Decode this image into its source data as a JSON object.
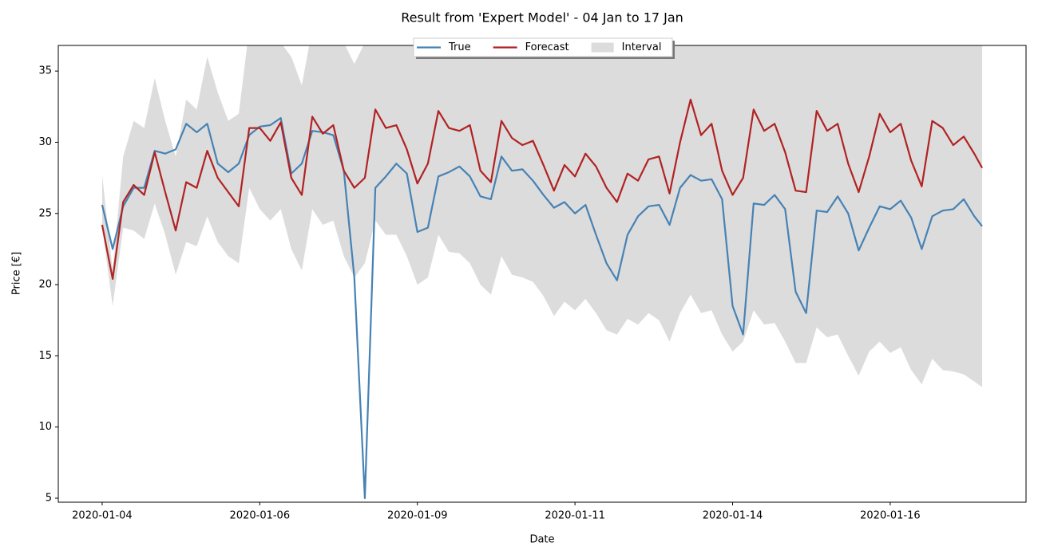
{
  "chart_data": {
    "type": "line",
    "title": "Result from 'Expert Model' - 04 Jan to 17 Jan",
    "x_label": "Date",
    "y_label": "Price [€]",
    "x": [
      0,
      4,
      8,
      12,
      16,
      20,
      24,
      28,
      32,
      36,
      40,
      44,
      48,
      52,
      56,
      60,
      64,
      68,
      72,
      76,
      80,
      84,
      88,
      92,
      96,
      100,
      104,
      108,
      112,
      116,
      120,
      124,
      128,
      132,
      136,
      140,
      144,
      148,
      152,
      156,
      160,
      164,
      168,
      172,
      176,
      180,
      184,
      188,
      192,
      196,
      200,
      204,
      208,
      212,
      216,
      220,
      224,
      228,
      232,
      236,
      240,
      244,
      248,
      252,
      256,
      260,
      264,
      268,
      272,
      276,
      280,
      284,
      288,
      292,
      296,
      300,
      304,
      308,
      312,
      316,
      320,
      324,
      328,
      332,
      335
    ],
    "series": [
      {
        "name": "True",
        "color": "#4682b4",
        "values": [
          25.6,
          22.5,
          25.5,
          26.8,
          26.8,
          29.4,
          29.2,
          29.5,
          31.3,
          30.7,
          31.3,
          28.5,
          27.9,
          28.5,
          30.5,
          31.1,
          31.2,
          31.7,
          27.8,
          28.5,
          30.8,
          30.7,
          30.5,
          28,
          20.5,
          5.0,
          26.8,
          27.6,
          28.5,
          27.8,
          23.7,
          24,
          27.6,
          27.9,
          28.3,
          27.6,
          26.2,
          26,
          29,
          28,
          28.1,
          27.3,
          26.3,
          25.4,
          25.8,
          25,
          25.6,
          23.5,
          21.5,
          20.3,
          23.5,
          24.8,
          25.5,
          25.6,
          24.2,
          26.8,
          27.7,
          27.3,
          27.4,
          26,
          18.5,
          16.5,
          25.7,
          25.6,
          26.3,
          25.3,
          19.5,
          18,
          25.2,
          25.1,
          26.2,
          25,
          22.4,
          24,
          25.5,
          25.3,
          25.9,
          24.7,
          22.5,
          24.8,
          25.2,
          25.3,
          26,
          24.8,
          24.1
        ]
      },
      {
        "name": "Forecast",
        "color": "#b22222",
        "values": [
          24.2,
          20.4,
          25.8,
          27,
          26.3,
          29.3,
          26.5,
          23.8,
          27.2,
          26.8,
          29.4,
          27.5,
          26.5,
          25.5,
          31,
          31,
          30.1,
          31.4,
          27.5,
          26.3,
          31.8,
          30.6,
          31.2,
          28,
          26.8,
          27.5,
          32.3,
          31,
          31.2,
          29.5,
          27.1,
          28.5,
          32.2,
          31,
          30.8,
          31.2,
          28,
          27.2,
          31.5,
          30.3,
          29.8,
          30.1,
          28.4,
          26.6,
          28.4,
          27.6,
          29.2,
          28.3,
          26.8,
          25.8,
          27.8,
          27.3,
          28.8,
          29,
          26.4,
          30,
          33,
          30.5,
          31.3,
          28,
          26.3,
          27.5,
          32.3,
          30.8,
          31.3,
          29.3,
          26.6,
          26.5,
          32.2,
          30.8,
          31.3,
          28.5,
          26.5,
          29,
          32,
          30.7,
          31.3,
          28.7,
          26.9,
          31.5,
          31,
          29.8,
          30.4,
          29.2,
          28.2
        ]
      }
    ],
    "interval": {
      "name": "Interval",
      "color": "#dcdcdc",
      "lower": [
        24,
        18.5,
        24,
        23.8,
        23.2,
        25.7,
        23.5,
        20.7,
        23,
        22.7,
        24.8,
        23,
        22,
        21.5,
        26.8,
        25.3,
        24.5,
        25.3,
        22.5,
        21,
        25.3,
        24.2,
        24.5,
        22,
        20.5,
        21.5,
        24.5,
        23.5,
        23.5,
        22,
        20,
        20.5,
        23.5,
        22.3,
        22.2,
        21.5,
        20,
        19.3,
        22,
        20.7,
        20.5,
        20.2,
        19.2,
        17.8,
        18.8,
        18.2,
        19,
        18,
        16.8,
        16.5,
        17.6,
        17.2,
        18,
        17.5,
        16,
        18,
        19.3,
        18,
        18.2,
        16.5,
        15.3,
        16,
        18.2,
        17.2,
        17.3,
        16,
        14.5,
        14.5,
        17,
        16.3,
        16.5,
        15,
        13.6,
        15.3,
        16,
        15.2,
        15.6,
        14,
        13,
        14.8,
        14,
        13.9,
        13.7,
        13.2,
        12.8
      ],
      "upper": [
        27.7,
        21,
        29,
        31.5,
        31,
        34.5,
        31.5,
        29,
        33,
        32.3,
        36,
        33.5,
        31.5,
        32,
        38,
        38,
        38,
        37,
        36,
        34,
        38,
        39,
        37.5,
        37,
        35.5,
        37,
        40,
        40,
        39,
        38,
        36.5,
        38,
        40,
        40,
        40,
        39,
        37,
        40,
        40,
        39,
        38,
        38,
        37,
        37.5,
        38,
        38,
        38,
        38,
        38,
        38,
        38,
        38,
        38,
        38,
        38,
        38,
        38,
        38,
        38,
        38,
        38,
        38,
        38,
        38,
        38,
        38,
        38,
        38,
        38,
        38,
        38,
        38,
        38,
        38,
        38,
        38,
        38,
        38,
        38,
        38,
        38,
        38,
        38,
        38,
        38
      ]
    },
    "xlim": [
      -16.7,
      351.7
    ],
    "xticks": [
      {
        "value": 0,
        "label": "2020-01-04"
      },
      {
        "value": 60,
        "label": "2020-01-06"
      },
      {
        "value": 120,
        "label": "2020-01-09"
      },
      {
        "value": 180,
        "label": "2020-01-11"
      },
      {
        "value": 240,
        "label": "2020-01-14"
      },
      {
        "value": 300,
        "label": "2020-01-16"
      }
    ],
    "ylim": [
      4.72,
      36.8
    ],
    "yticks": [
      5,
      10,
      15,
      20,
      25,
      30,
      35
    ],
    "grid": false,
    "legend": "top"
  }
}
